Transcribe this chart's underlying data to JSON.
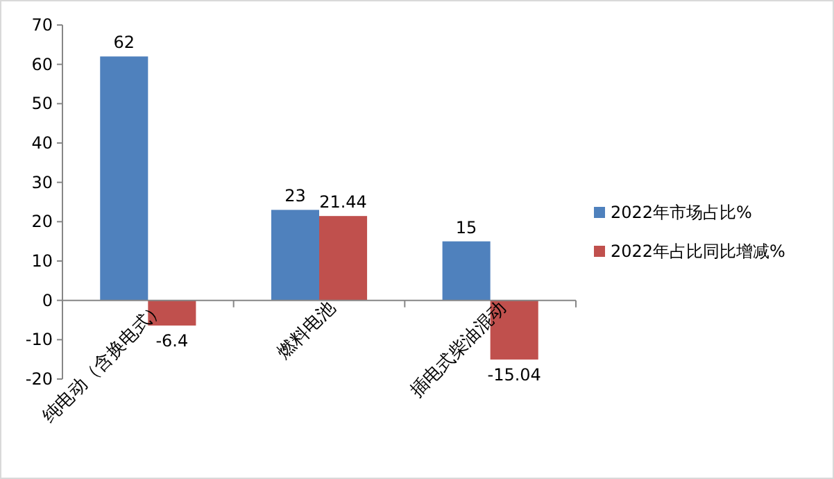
{
  "chart_data": {
    "type": "bar",
    "categories": [
      "纯电动（含换电式）",
      "燃料电池",
      "插电式柴油混动"
    ],
    "series": [
      {
        "name": "2022年市场占比%",
        "color": "#4f81bd",
        "values": [
          62,
          23,
          15
        ]
      },
      {
        "name": "2022年占比同比增减%",
        "color": "#c0504d",
        "values": [
          -6.4,
          21.44,
          -15.04
        ]
      }
    ],
    "ylim": [
      -20,
      70
    ],
    "yticks": [
      -20,
      -10,
      0,
      10,
      20,
      30,
      40,
      50,
      60,
      70
    ],
    "grid": false,
    "legend": "right",
    "data_labels": true
  }
}
